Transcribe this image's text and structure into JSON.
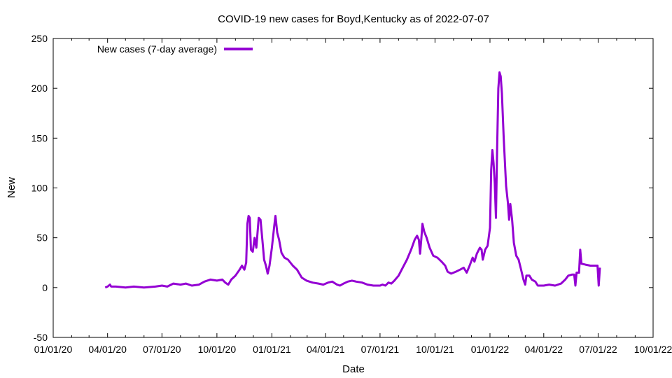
{
  "chart_data": {
    "type": "line",
    "title": "COVID-19 new cases for Boyd,Kentucky as of 2022-07-07",
    "xlabel": "Date",
    "ylabel": "New",
    "xlim": [
      "2020-01-01",
      "2022-10-01"
    ],
    "ylim": [
      -50,
      250
    ],
    "x_ticks": [
      {
        "date": "2020-01-01",
        "label": "01/01/20"
      },
      {
        "date": "2020-04-01",
        "label": "04/01/20"
      },
      {
        "date": "2020-07-01",
        "label": "07/01/20"
      },
      {
        "date": "2020-10-01",
        "label": "10/01/20"
      },
      {
        "date": "2021-01-01",
        "label": "01/01/21"
      },
      {
        "date": "2021-04-01",
        "label": "04/01/21"
      },
      {
        "date": "2021-07-01",
        "label": "07/01/21"
      },
      {
        "date": "2021-10-01",
        "label": "10/01/21"
      },
      {
        "date": "2022-01-01",
        "label": "01/01/22"
      },
      {
        "date": "2022-04-01",
        "label": "04/01/22"
      },
      {
        "date": "2022-07-01",
        "label": "07/01/22"
      },
      {
        "date": "2022-10-01",
        "label": "10/01/22"
      }
    ],
    "y_ticks": [
      -50,
      0,
      50,
      100,
      150,
      200,
      250
    ],
    "grid": false,
    "legend_position": "top-left",
    "series": [
      {
        "name": "New cases (7-day average)",
        "color": "#9400d3",
        "points": [
          [
            "2020-03-28",
            0
          ],
          [
            "2020-04-01",
            1
          ],
          [
            "2020-04-05",
            3
          ],
          [
            "2020-04-07",
            1
          ],
          [
            "2020-04-15",
            1
          ],
          [
            "2020-05-01",
            0
          ],
          [
            "2020-05-15",
            1
          ],
          [
            "2020-06-01",
            0
          ],
          [
            "2020-06-20",
            1
          ],
          [
            "2020-07-01",
            2
          ],
          [
            "2020-07-10",
            1
          ],
          [
            "2020-07-20",
            4
          ],
          [
            "2020-08-01",
            3
          ],
          [
            "2020-08-10",
            4
          ],
          [
            "2020-08-20",
            2
          ],
          [
            "2020-09-01",
            3
          ],
          [
            "2020-09-10",
            6
          ],
          [
            "2020-09-20",
            8
          ],
          [
            "2020-10-01",
            7
          ],
          [
            "2020-10-10",
            8
          ],
          [
            "2020-10-15",
            5
          ],
          [
            "2020-10-20",
            3
          ],
          [
            "2020-10-25",
            8
          ],
          [
            "2020-11-01",
            12
          ],
          [
            "2020-11-08",
            18
          ],
          [
            "2020-11-12",
            22
          ],
          [
            "2020-11-16",
            18
          ],
          [
            "2020-11-19",
            25
          ],
          [
            "2020-11-21",
            64
          ],
          [
            "2020-11-23",
            72
          ],
          [
            "2020-11-25",
            70
          ],
          [
            "2020-11-27",
            38
          ],
          [
            "2020-11-30",
            36
          ],
          [
            "2020-12-03",
            50
          ],
          [
            "2020-12-06",
            40
          ],
          [
            "2020-12-10",
            70
          ],
          [
            "2020-12-13",
            68
          ],
          [
            "2020-12-16",
            48
          ],
          [
            "2020-12-19",
            28
          ],
          [
            "2020-12-22",
            22
          ],
          [
            "2020-12-25",
            14
          ],
          [
            "2020-12-28",
            22
          ],
          [
            "2021-01-01",
            40
          ],
          [
            "2021-01-05",
            62
          ],
          [
            "2021-01-07",
            72
          ],
          [
            "2021-01-10",
            55
          ],
          [
            "2021-01-13",
            48
          ],
          [
            "2021-01-17",
            35
          ],
          [
            "2021-01-22",
            30
          ],
          [
            "2021-01-28",
            28
          ],
          [
            "2021-02-05",
            22
          ],
          [
            "2021-02-12",
            18
          ],
          [
            "2021-02-20",
            10
          ],
          [
            "2021-02-28",
            7
          ],
          [
            "2021-03-10",
            5
          ],
          [
            "2021-03-20",
            4
          ],
          [
            "2021-03-28",
            3
          ],
          [
            "2021-04-05",
            5
          ],
          [
            "2021-04-12",
            6
          ],
          [
            "2021-04-20",
            3
          ],
          [
            "2021-04-25",
            2
          ],
          [
            "2021-05-01",
            4
          ],
          [
            "2021-05-08",
            6
          ],
          [
            "2021-05-15",
            7
          ],
          [
            "2021-05-22",
            6
          ],
          [
            "2021-06-01",
            5
          ],
          [
            "2021-06-10",
            3
          ],
          [
            "2021-06-20",
            2
          ],
          [
            "2021-07-01",
            2
          ],
          [
            "2021-07-05",
            3
          ],
          [
            "2021-07-10",
            2
          ],
          [
            "2021-07-15",
            5
          ],
          [
            "2021-07-20",
            4
          ],
          [
            "2021-07-25",
            7
          ],
          [
            "2021-08-01",
            12
          ],
          [
            "2021-08-08",
            20
          ],
          [
            "2021-08-15",
            28
          ],
          [
            "2021-08-22",
            38
          ],
          [
            "2021-08-28",
            48
          ],
          [
            "2021-09-01",
            52
          ],
          [
            "2021-09-04",
            48
          ],
          [
            "2021-09-06",
            34
          ],
          [
            "2021-09-08",
            48
          ],
          [
            "2021-09-10",
            64
          ],
          [
            "2021-09-13",
            56
          ],
          [
            "2021-09-17",
            50
          ],
          [
            "2021-09-22",
            40
          ],
          [
            "2021-09-28",
            32
          ],
          [
            "2021-10-05",
            30
          ],
          [
            "2021-10-12",
            26
          ],
          [
            "2021-10-18",
            22
          ],
          [
            "2021-10-22",
            16
          ],
          [
            "2021-10-28",
            14
          ],
          [
            "2021-11-05",
            16
          ],
          [
            "2021-11-12",
            18
          ],
          [
            "2021-11-18",
            20
          ],
          [
            "2021-11-23",
            15
          ],
          [
            "2021-11-28",
            22
          ],
          [
            "2021-12-03",
            30
          ],
          [
            "2021-12-06",
            26
          ],
          [
            "2021-12-10",
            34
          ],
          [
            "2021-12-15",
            40
          ],
          [
            "2021-12-18",
            38
          ],
          [
            "2021-12-20",
            28
          ],
          [
            "2021-12-24",
            38
          ],
          [
            "2021-12-28",
            42
          ],
          [
            "2022-01-01",
            60
          ],
          [
            "2022-01-03",
            118
          ],
          [
            "2022-01-05",
            138
          ],
          [
            "2022-01-07",
            125
          ],
          [
            "2022-01-09",
            105
          ],
          [
            "2022-01-11",
            70
          ],
          [
            "2022-01-13",
            140
          ],
          [
            "2022-01-15",
            200
          ],
          [
            "2022-01-17",
            216
          ],
          [
            "2022-01-19",
            212
          ],
          [
            "2022-01-21",
            195
          ],
          [
            "2022-01-24",
            150
          ],
          [
            "2022-01-28",
            102
          ],
          [
            "2022-01-31",
            85
          ],
          [
            "2022-02-02",
            68
          ],
          [
            "2022-02-04",
            84
          ],
          [
            "2022-02-07",
            68
          ],
          [
            "2022-02-10",
            45
          ],
          [
            "2022-02-14",
            32
          ],
          [
            "2022-02-18",
            28
          ],
          [
            "2022-02-22",
            18
          ],
          [
            "2022-02-26",
            8
          ],
          [
            "2022-03-01",
            3
          ],
          [
            "2022-03-03",
            12
          ],
          [
            "2022-03-08",
            12
          ],
          [
            "2022-03-12",
            8
          ],
          [
            "2022-03-18",
            6
          ],
          [
            "2022-03-22",
            2
          ],
          [
            "2022-04-01",
            2
          ],
          [
            "2022-04-10",
            3
          ],
          [
            "2022-04-20",
            2
          ],
          [
            "2022-04-30",
            4
          ],
          [
            "2022-05-07",
            8
          ],
          [
            "2022-05-12",
            12
          ],
          [
            "2022-05-18",
            13
          ],
          [
            "2022-05-22",
            13
          ],
          [
            "2022-05-24",
            2
          ],
          [
            "2022-05-26",
            15
          ],
          [
            "2022-05-30",
            15
          ],
          [
            "2022-06-01",
            38
          ],
          [
            "2022-06-03",
            24
          ],
          [
            "2022-06-10",
            23
          ],
          [
            "2022-06-18",
            22
          ],
          [
            "2022-06-25",
            22
          ],
          [
            "2022-06-30",
            22
          ],
          [
            "2022-07-02",
            2
          ],
          [
            "2022-07-04",
            20
          ]
        ]
      }
    ]
  }
}
